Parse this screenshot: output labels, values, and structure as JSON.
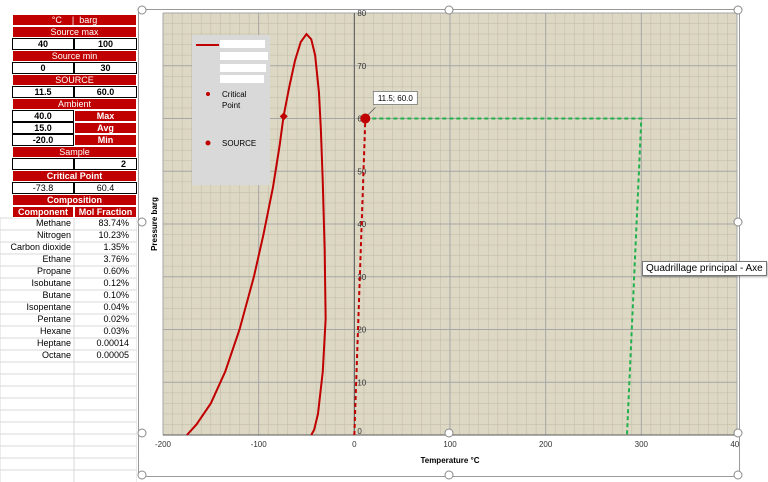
{
  "table": {
    "units": [
      "°C",
      "|",
      "barg"
    ],
    "source_max": {
      "label": "Source max",
      "temp": "40",
      "pressure": "100"
    },
    "source_min": {
      "label": "Source min",
      "temp": "0",
      "pressure": "30"
    },
    "source": {
      "label": "SOURCE",
      "temp": "11.5",
      "pressure": "60.0"
    },
    "ambient": {
      "label": "Ambient",
      "rows": [
        {
          "value": "40.0",
          "label": "Max"
        },
        {
          "value": "15.0",
          "label": "Avg"
        },
        {
          "value": "-20.0",
          "label": "Min"
        }
      ]
    },
    "sample": {
      "label": "Sample",
      "value": "2"
    },
    "critical_point": {
      "label": "Critical Point",
      "temp": "-73.8",
      "pressure": "60.4"
    },
    "composition": {
      "label": "Composition",
      "col_component": "Component",
      "col_fraction": "Mol Fraction",
      "rows": [
        {
          "name": "Methane",
          "value": "83.74%"
        },
        {
          "name": "Nitrogen",
          "value": "10.23%"
        },
        {
          "name": "Carbon dioxide",
          "value": "1.35%"
        },
        {
          "name": "Ethane",
          "value": "3.76%"
        },
        {
          "name": "Propane",
          "value": "0.60%"
        },
        {
          "name": "Isobutane",
          "value": "0.12%"
        },
        {
          "name": "Butane",
          "value": "0.10%"
        },
        {
          "name": "Isopentane",
          "value": "0.04%"
        },
        {
          "name": "Pentane",
          "value": "0.02%"
        },
        {
          "name": "Hexane",
          "value": "0.03%"
        },
        {
          "name": "Heptane",
          "value": "0.00014"
        },
        {
          "name": "Octane",
          "value": "0.00005"
        }
      ]
    }
  },
  "tooltip": "Quadrillage principal - Axe",
  "colors": {
    "header_red": "#c00000",
    "plot_bg": "#ddd8c4",
    "curve": "#c00000",
    "dash_green": "#22b14c",
    "grid": "#a6a6a6"
  },
  "chart_data": {
    "type": "scatter",
    "xlabel": "Temperature °C",
    "ylabel": "Pressure barg",
    "xlim": [
      -200,
      400
    ],
    "ylim": [
      0,
      80
    ],
    "xticks": [
      -200,
      -100,
      0,
      100,
      200,
      300,
      400
    ],
    "yticks": [
      0,
      10,
      20,
      30,
      40,
      50,
      60,
      70,
      80
    ],
    "grid": true,
    "legend_position": "top-left",
    "legend": [
      {
        "type": "line",
        "label": ""
      },
      {
        "type": "point",
        "label": "Critical Point"
      },
      {
        "type": "point",
        "label": "SOURCE"
      }
    ],
    "phase_envelope": {
      "x": [
        -175,
        -165,
        -150,
        -135,
        -120,
        -105,
        -95,
        -85,
        -78,
        -74,
        -68,
        -62,
        -56,
        -50,
        -45,
        -41,
        -37,
        -35,
        -33,
        -31,
        -30,
        -33,
        -38,
        -42,
        -45
      ],
      "y": [
        0,
        2,
        6,
        12,
        20,
        30,
        38,
        47,
        55,
        60.4,
        66,
        71,
        74.5,
        76,
        75,
        72,
        65,
        58,
        48,
        35,
        22,
        12,
        4,
        1,
        0
      ]
    },
    "critical_point": {
      "x": -73.8,
      "y": 60.4
    },
    "source_point": {
      "x": 11.5,
      "y": 60.0,
      "label": "11.5; 60.0"
    },
    "red_dashed": {
      "x": [
        0,
        11.5
      ],
      "y": [
        0,
        60
      ]
    },
    "green_dashed": {
      "x": [
        11.5,
        300,
        285
      ],
      "y": [
        60,
        60,
        0
      ]
    }
  }
}
